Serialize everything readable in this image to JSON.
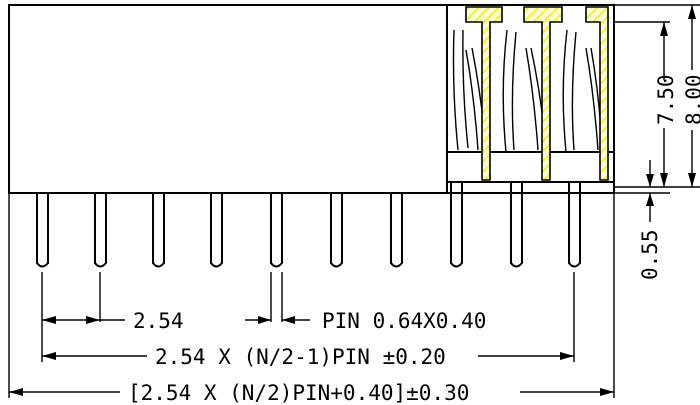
{
  "dimensions": {
    "pitch": "2.54",
    "pin": "PIN 0.64X0.40",
    "span_inner": "2.54 X (N/2-1)PIN ±0.20",
    "span_outer": "[2.54 X (N/2)PIN+0.40]±0.30",
    "height_inner": "7.50",
    "height_outer": "8.00",
    "standoff": "0.55"
  },
  "colors": {
    "line": "#000000",
    "highlight": "#f2f25a",
    "background": "#ffffff"
  },
  "pin_count": 10
}
